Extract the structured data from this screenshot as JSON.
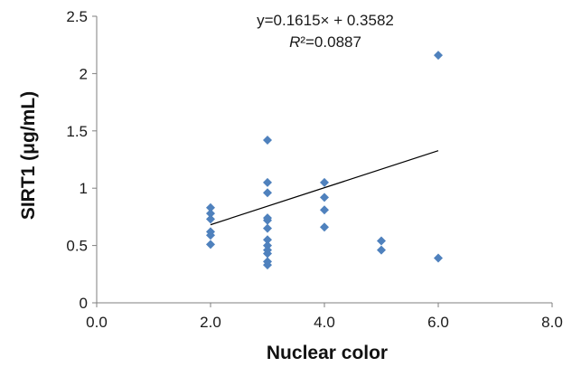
{
  "chart_data": {
    "type": "scatter",
    "xlabel": "Nuclear color",
    "ylabel": "SIRT1 (μg/mL)",
    "xlim": [
      0,
      8
    ],
    "ylim": [
      0,
      2.5
    ],
    "xticks": [
      "0.0",
      "2.0",
      "4.0",
      "6.0",
      "8.0"
    ],
    "yticks": [
      "0",
      "0.5",
      "1",
      "1.5",
      "2",
      "2.5"
    ],
    "grid": false,
    "marker_color": "#4f81bd",
    "trendline_color": "#000000",
    "points": [
      {
        "x": 2,
        "y": 0.83
      },
      {
        "x": 2,
        "y": 0.78
      },
      {
        "x": 2,
        "y": 0.73
      },
      {
        "x": 2,
        "y": 0.62
      },
      {
        "x": 2,
        "y": 0.59
      },
      {
        "x": 2,
        "y": 0.51
      },
      {
        "x": 3,
        "y": 1.42
      },
      {
        "x": 3,
        "y": 1.05
      },
      {
        "x": 3,
        "y": 0.96
      },
      {
        "x": 3,
        "y": 0.74
      },
      {
        "x": 3,
        "y": 0.72
      },
      {
        "x": 3,
        "y": 0.65
      },
      {
        "x": 3,
        "y": 0.55
      },
      {
        "x": 3,
        "y": 0.5
      },
      {
        "x": 3,
        "y": 0.46
      },
      {
        "x": 3,
        "y": 0.43
      },
      {
        "x": 3,
        "y": 0.36
      },
      {
        "x": 3,
        "y": 0.33
      },
      {
        "x": 4,
        "y": 1.05
      },
      {
        "x": 4,
        "y": 0.92
      },
      {
        "x": 4,
        "y": 0.81
      },
      {
        "x": 4,
        "y": 0.66
      },
      {
        "x": 5,
        "y": 0.54
      },
      {
        "x": 5,
        "y": 0.46
      },
      {
        "x": 6,
        "y": 2.16
      },
      {
        "x": 6,
        "y": 0.39
      }
    ],
    "trendline": {
      "slope": 0.1615,
      "intercept": 0.3582,
      "x_range": [
        2,
        6
      ],
      "equation": "y=0.1615× + 0.3582",
      "r2_symbol": "R",
      "r2_value": "²=0.0887"
    }
  }
}
